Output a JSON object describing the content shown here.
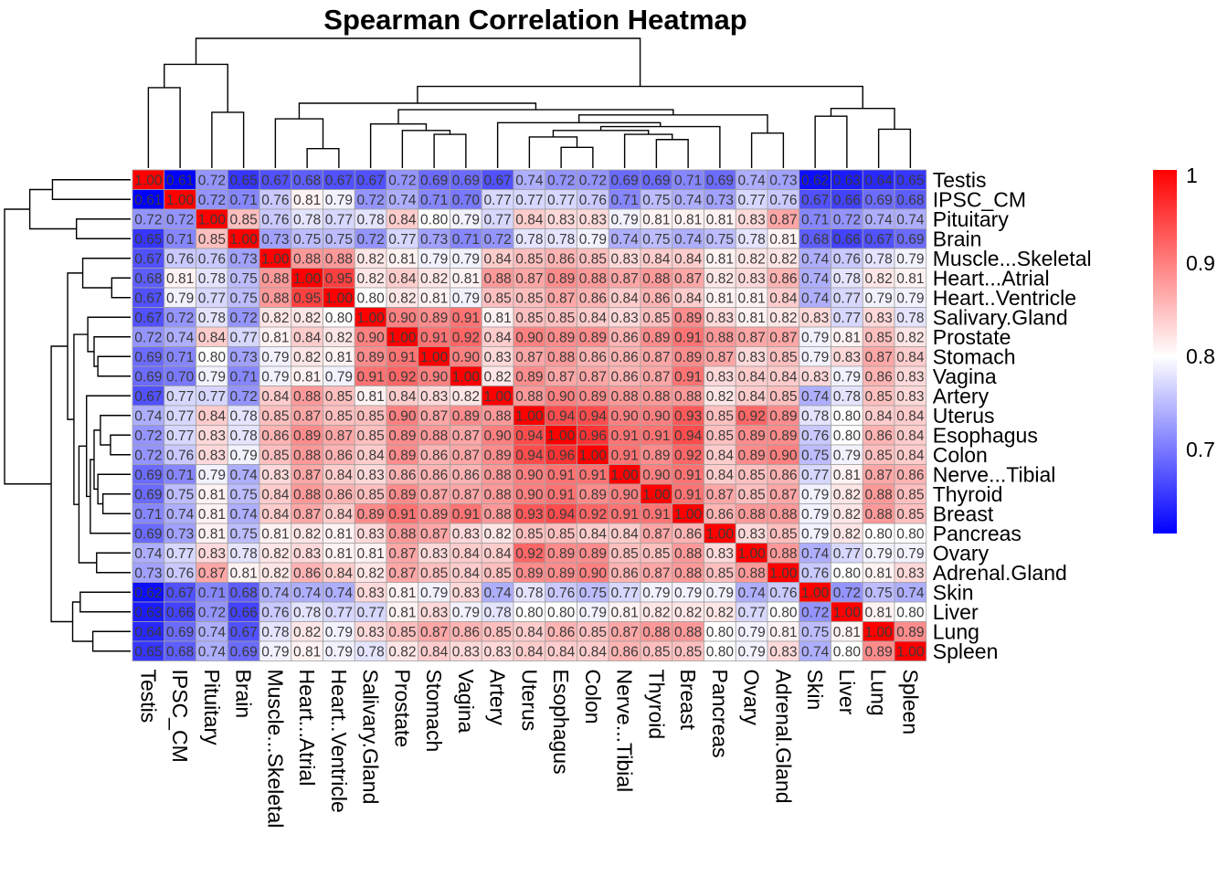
{
  "chart_data": {
    "type": "heatmap",
    "title": "Spearman Correlation Heatmap",
    "labels": [
      "Testis",
      "IPSC_CM",
      "Pituitary",
      "Brain",
      "Muscle...Skeletal",
      "Heart...Atrial",
      "Heart..Ventricle",
      "Salivary.Gland",
      "Prostate",
      "Stomach",
      "Vagina",
      "Artery",
      "Uterus",
      "Esophagus",
      "Colon",
      "Nerve...Tibial",
      "Thyroid",
      "Breast",
      "Pancreas",
      "Ovary",
      "Adrenal.Gland",
      "Skin",
      "Liver",
      "Lung",
      "Spleen"
    ],
    "display_values": [
      [
        "1.00",
        "0.61",
        "0.72",
        "0.65",
        "0.67",
        "0.68",
        "0.67",
        "0.67",
        "0.72",
        "0.69",
        "0.69",
        "0.67",
        "0.74",
        "0.72",
        "0.72",
        "0.69",
        "0.69",
        "0.71",
        "0.69",
        "0.74",
        "0.73",
        "0.62",
        "0.63",
        "0.64",
        "0.65"
      ],
      [
        "0.61",
        "1.00",
        "0.72",
        "0.71",
        "0.76",
        "0.81",
        "0.79",
        "0.72",
        "0.74",
        "0.71",
        "0.70",
        "0.77",
        "0.77",
        "0.77",
        "0.76",
        "0.71",
        "0.75",
        "0.74",
        "0.73",
        "0.77",
        "0.76",
        "0.67",
        "0.66",
        "0.69",
        "0.68"
      ],
      [
        "0.72",
        "0.72",
        "1.00",
        "0.85",
        "0.76",
        "0.78",
        "0.77",
        "0.78",
        "0.84",
        "0.80",
        "0.79",
        "0.77",
        "0.84",
        "0.83",
        "0.83",
        "0.79",
        "0.81",
        "0.81",
        "0.81",
        "0.83",
        "0.87",
        "0.71",
        "0.72",
        "0.74",
        "0.74"
      ],
      [
        "0.65",
        "0.71",
        "0.85",
        "1.00",
        "0.73",
        "0.75",
        "0.75",
        "0.72",
        "0.77",
        "0.73",
        "0.71",
        "0.72",
        "0.78",
        "0.78",
        "0.79",
        "0.74",
        "0.75",
        "0.74",
        "0.75",
        "0.78",
        "0.81",
        "0.68",
        "0.66",
        "0.67",
        "0.69"
      ],
      [
        "0.67",
        "0.76",
        "0.76",
        "0.73",
        "1.00",
        "0.88",
        "0.88",
        "0.82",
        "0.81",
        "0.79",
        "0.79",
        "0.84",
        "0.85",
        "0.86",
        "0.85",
        "0.83",
        "0.84",
        "0.84",
        "0.81",
        "0.82",
        "0.82",
        "0.74",
        "0.76",
        "0.78",
        "0.79"
      ],
      [
        "0.68",
        "0.81",
        "0.78",
        "0.75",
        "0.88",
        "1.00",
        "0.95",
        "0.82",
        "0.84",
        "0.82",
        "0.81",
        "0.88",
        "0.87",
        "0.89",
        "0.88",
        "0.87",
        "0.88",
        "0.87",
        "0.82",
        "0.83",
        "0.86",
        "0.74",
        "0.78",
        "0.82",
        "0.81"
      ],
      [
        "0.67",
        "0.79",
        "0.77",
        "0.75",
        "0.88",
        "0.95",
        "1.00",
        "0.80",
        "0.82",
        "0.81",
        "0.79",
        "0.85",
        "0.85",
        "0.87",
        "0.86",
        "0.84",
        "0.86",
        "0.84",
        "0.81",
        "0.81",
        "0.84",
        "0.74",
        "0.77",
        "0.79",
        "0.79"
      ],
      [
        "0.67",
        "0.72",
        "0.78",
        "0.72",
        "0.82",
        "0.82",
        "0.80",
        "1.00",
        "0.90",
        "0.89",
        "0.91",
        "0.81",
        "0.85",
        "0.85",
        "0.84",
        "0.83",
        "0.85",
        "0.89",
        "0.83",
        "0.81",
        "0.82",
        "0.83",
        "0.77",
        "0.83",
        "0.78"
      ],
      [
        "0.72",
        "0.74",
        "0.84",
        "0.77",
        "0.81",
        "0.84",
        "0.82",
        "0.90",
        "1.00",
        "0.91",
        "0.92",
        "0.84",
        "0.90",
        "0.89",
        "0.89",
        "0.86",
        "0.89",
        "0.91",
        "0.88",
        "0.87",
        "0.87",
        "0.79",
        "0.81",
        "0.85",
        "0.82"
      ],
      [
        "0.69",
        "0.71",
        "0.80",
        "0.73",
        "0.79",
        "0.82",
        "0.81",
        "0.89",
        "0.91",
        "1.00",
        "0.90",
        "0.83",
        "0.87",
        "0.88",
        "0.86",
        "0.86",
        "0.87",
        "0.89",
        "0.87",
        "0.83",
        "0.85",
        "0.79",
        "0.83",
        "0.87",
        "0.84"
      ],
      [
        "0.69",
        "0.70",
        "0.79",
        "0.71",
        "0.79",
        "0.81",
        "0.79",
        "0.91",
        "0.92",
        "0.90",
        "1.00",
        "0.82",
        "0.89",
        "0.87",
        "0.87",
        "0.86",
        "0.87",
        "0.91",
        "0.83",
        "0.84",
        "0.84",
        "0.83",
        "0.79",
        "0.86",
        "0.83"
      ],
      [
        "0.67",
        "0.77",
        "0.77",
        "0.72",
        "0.84",
        "0.88",
        "0.85",
        "0.81",
        "0.84",
        "0.83",
        "0.82",
        "1.00",
        "0.88",
        "0.90",
        "0.89",
        "0.88",
        "0.88",
        "0.88",
        "0.82",
        "0.84",
        "0.85",
        "0.74",
        "0.78",
        "0.85",
        "0.83"
      ],
      [
        "0.74",
        "0.77",
        "0.84",
        "0.78",
        "0.85",
        "0.87",
        "0.85",
        "0.85",
        "0.90",
        "0.87",
        "0.89",
        "0.88",
        "1.00",
        "0.94",
        "0.94",
        "0.90",
        "0.90",
        "0.93",
        "0.85",
        "0.92",
        "0.89",
        "0.78",
        "0.80",
        "0.84",
        "0.84"
      ],
      [
        "0.72",
        "0.77",
        "0.83",
        "0.78",
        "0.86",
        "0.89",
        "0.87",
        "0.85",
        "0.89",
        "0.88",
        "0.87",
        "0.90",
        "0.94",
        "1.00",
        "0.96",
        "0.91",
        "0.91",
        "0.94",
        "0.85",
        "0.89",
        "0.89",
        "0.76",
        "0.80",
        "0.86",
        "0.84"
      ],
      [
        "0.72",
        "0.76",
        "0.83",
        "0.79",
        "0.85",
        "0.88",
        "0.86",
        "0.84",
        "0.89",
        "0.86",
        "0.87",
        "0.89",
        "0.94",
        "0.96",
        "1.00",
        "0.91",
        "0.89",
        "0.92",
        "0.84",
        "0.89",
        "0.90",
        "0.75",
        "0.79",
        "0.85",
        "0.84"
      ],
      [
        "0.69",
        "0.71",
        "0.79",
        "0.74",
        "0.83",
        "0.87",
        "0.84",
        "0.83",
        "0.86",
        "0.86",
        "0.86",
        "0.88",
        "0.90",
        "0.91",
        "0.91",
        "1.00",
        "0.90",
        "0.91",
        "0.84",
        "0.85",
        "0.86",
        "0.77",
        "0.81",
        "0.87",
        "0.86"
      ],
      [
        "0.69",
        "0.75",
        "0.81",
        "0.75",
        "0.84",
        "0.88",
        "0.86",
        "0.85",
        "0.89",
        "0.87",
        "0.87",
        "0.88",
        "0.90",
        "0.91",
        "0.89",
        "0.90",
        "1.00",
        "0.91",
        "0.87",
        "0.85",
        "0.87",
        "0.79",
        "0.82",
        "0.88",
        "0.85"
      ],
      [
        "0.71",
        "0.74",
        "0.81",
        "0.74",
        "0.84",
        "0.87",
        "0.84",
        "0.89",
        "0.91",
        "0.89",
        "0.91",
        "0.88",
        "0.93",
        "0.94",
        "0.92",
        "0.91",
        "0.91",
        "1.00",
        "0.86",
        "0.88",
        "0.88",
        "0.79",
        "0.82",
        "0.88",
        "0.85"
      ],
      [
        "0.69",
        "0.73",
        "0.81",
        "0.75",
        "0.81",
        "0.82",
        "0.81",
        "0.83",
        "0.88",
        "0.87",
        "0.83",
        "0.82",
        "0.85",
        "0.85",
        "0.84",
        "0.84",
        "0.87",
        "0.86",
        "1.00",
        "0.83",
        "0.85",
        "0.79",
        "0.82",
        "0.80",
        "0.80"
      ],
      [
        "0.74",
        "0.77",
        "0.83",
        "0.78",
        "0.82",
        "0.83",
        "0.81",
        "0.81",
        "0.87",
        "0.83",
        "0.84",
        "0.84",
        "0.92",
        "0.89",
        "0.89",
        "0.85",
        "0.85",
        "0.88",
        "0.83",
        "1.00",
        "0.88",
        "0.74",
        "0.77",
        "0.79",
        "0.79"
      ],
      [
        "0.73",
        "0.76",
        "0.87",
        "0.81",
        "0.82",
        "0.86",
        "0.84",
        "0.82",
        "0.87",
        "0.85",
        "0.84",
        "0.85",
        "0.89",
        "0.89",
        "0.90",
        "0.86",
        "0.87",
        "0.88",
        "0.85",
        "0.88",
        "1.00",
        "0.76",
        "0.80",
        "0.81",
        "0.83"
      ],
      [
        "0.62",
        "0.67",
        "0.71",
        "0.68",
        "0.74",
        "0.74",
        "0.74",
        "0.83",
        "0.81",
        "0.79",
        "0.83",
        "0.74",
        "0.78",
        "0.76",
        "0.75",
        "0.77",
        "0.79",
        "0.79",
        "0.79",
        "0.74",
        "0.76",
        "1.00",
        "0.72",
        "0.75",
        "0.74"
      ],
      [
        "0.63",
        "0.66",
        "0.72",
        "0.66",
        "0.76",
        "0.78",
        "0.77",
        "0.77",
        "0.81",
        "0.83",
        "0.79",
        "0.78",
        "0.80",
        "0.80",
        "0.79",
        "0.81",
        "0.82",
        "0.82",
        "0.82",
        "0.77",
        "0.80",
        "0.72",
        "1.00",
        "0.81",
        "0.80"
      ],
      [
        "0.64",
        "0.69",
        "0.74",
        "0.67",
        "0.78",
        "0.82",
        "0.79",
        "0.83",
        "0.85",
        "0.87",
        "0.86",
        "0.85",
        "0.84",
        "0.86",
        "0.85",
        "0.87",
        "0.88",
        "0.88",
        "0.80",
        "0.79",
        "0.81",
        "0.75",
        "0.81",
        "1.00",
        "0.89"
      ],
      [
        "0.65",
        "0.68",
        "0.74",
        "0.69",
        "0.79",
        "0.81",
        "0.79",
        "0.78",
        "0.82",
        "0.84",
        "0.83",
        "0.83",
        "0.84",
        "0.84",
        "0.84",
        "0.86",
        "0.85",
        "0.85",
        "0.80",
        "0.79",
        "0.83",
        "0.74",
        "0.80",
        "0.89",
        "1.00"
      ]
    ],
    "color_scale": {
      "low": "#0000FF",
      "mid": "#FFFFFF",
      "high": "#FF0000",
      "min": 0.61,
      "mid_value": 0.8,
      "max": 1.0,
      "legend_ticks": [
        0.7,
        0.8,
        0.9,
        1
      ],
      "legend_tick_labels": [
        "0.7",
        "0.8",
        "0.9",
        "1"
      ]
    },
    "grid_color": "#A0A0A0",
    "legend_placement": "right"
  }
}
